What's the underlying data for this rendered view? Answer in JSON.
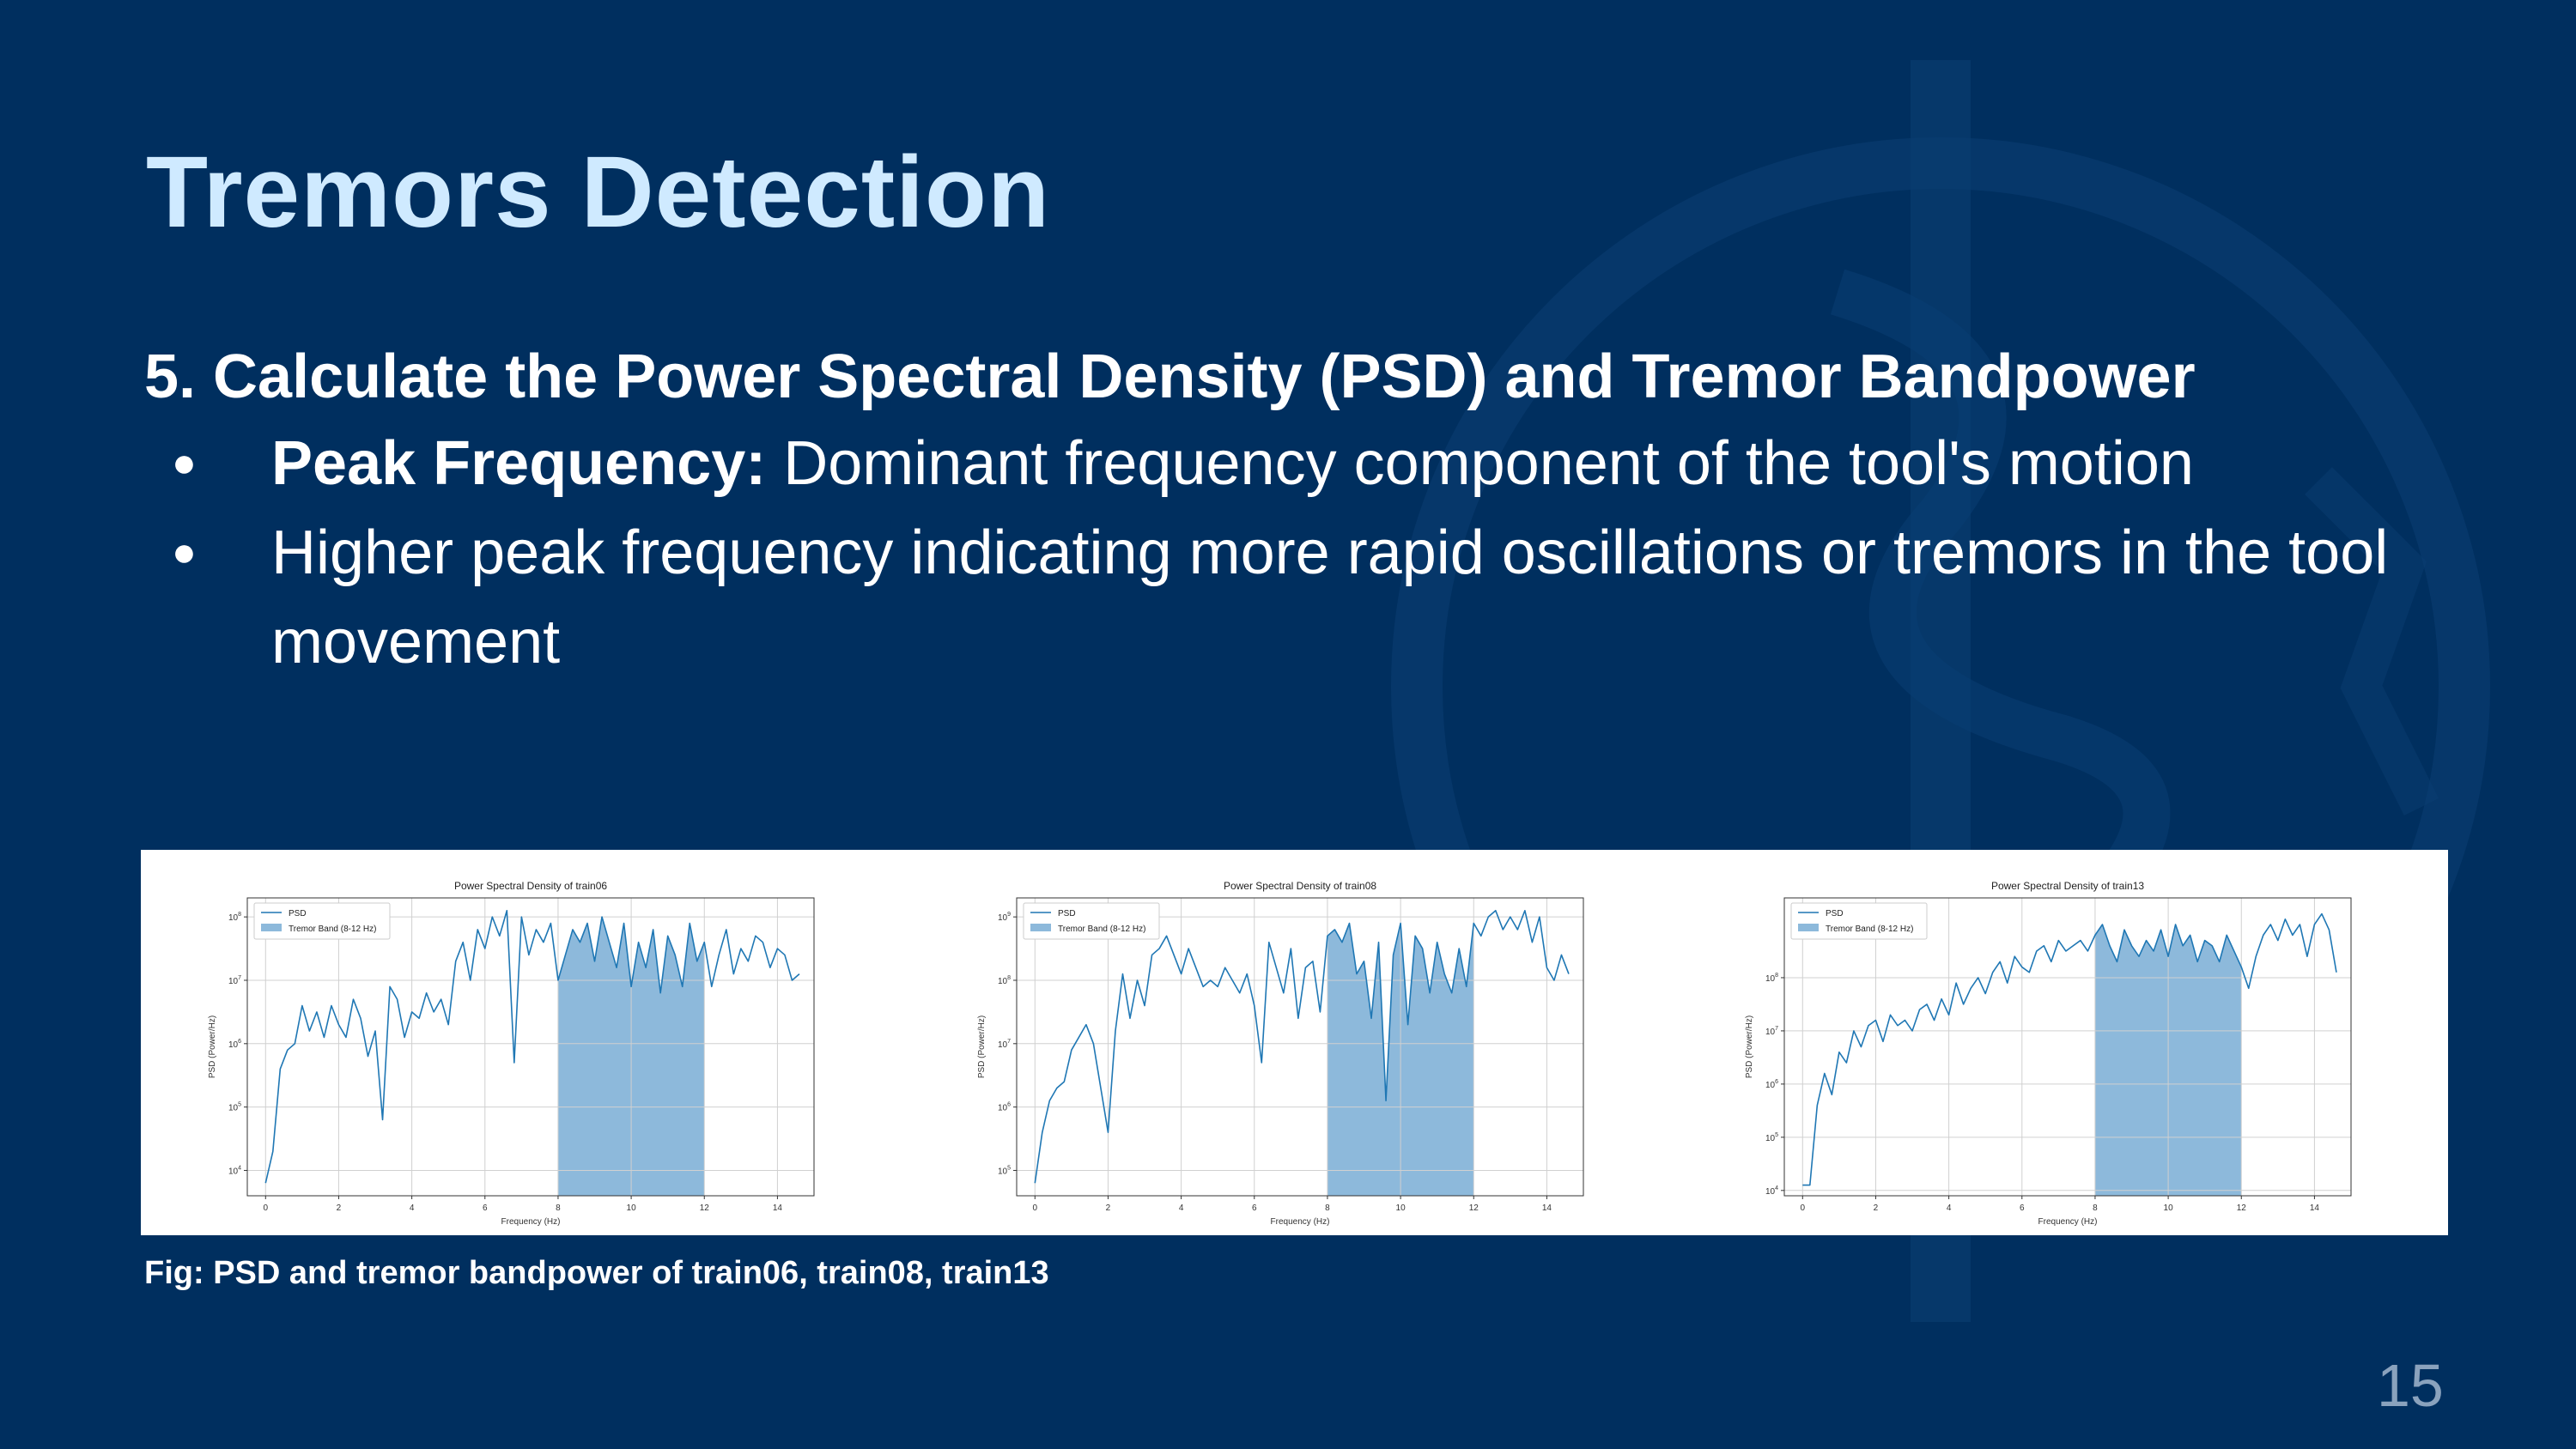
{
  "slide": {
    "title": "Tremors Detection",
    "heading": "5. Calculate the Power Spectral Density (PSD) and Tremor Bandpower",
    "bullets": [
      {
        "bold": "Peak Frequency:",
        "text": " Dominant frequency component of the tool's motion"
      },
      {
        "bold": "",
        "text": "Higher peak frequency indicating more rapid oscillations or tremors in the tool movement"
      }
    ],
    "caption": "Fig: PSD and tremor bandpower of train06, train08, train13",
    "page_number": "15",
    "bullet_symbol": "●"
  },
  "colors": {
    "background": "#002f5f",
    "title": "#cfeaff",
    "psd_line": "#1f77b4",
    "tremor_fill": "#8db9db"
  },
  "chart_data": [
    {
      "type": "line",
      "title": "Power Spectral Density of train06",
      "xlabel": "Frequency (Hz)",
      "ylabel": "PSD (Power/Hz)",
      "xlim": [
        -0.5,
        15
      ],
      "y_scale": "log",
      "ylim_log10": [
        3.6,
        8.3
      ],
      "x_ticks": [
        0,
        2,
        4,
        6,
        8,
        10,
        12,
        14
      ],
      "y_ticks_exp": [
        4,
        5,
        6,
        7,
        8
      ],
      "grid": true,
      "legend": {
        "position": "top-left",
        "entries": [
          "PSD",
          "Tremor Band (8-12 Hz)"
        ]
      },
      "tremor_band": [
        8,
        12
      ],
      "series": [
        {
          "name": "PSD",
          "x": [
            0,
            0.2,
            0.4,
            0.6,
            0.8,
            1.0,
            1.2,
            1.4,
            1.6,
            1.8,
            2.0,
            2.2,
            2.4,
            2.6,
            2.8,
            3.0,
            3.2,
            3.4,
            3.6,
            3.8,
            4.0,
            4.2,
            4.4,
            4.6,
            4.8,
            5.0,
            5.2,
            5.4,
            5.6,
            5.8,
            6.0,
            6.2,
            6.4,
            6.6,
            6.8,
            7.0,
            7.2,
            7.4,
            7.6,
            7.8,
            8.0,
            8.2,
            8.4,
            8.6,
            8.8,
            9.0,
            9.2,
            9.4,
            9.6,
            9.8,
            10.0,
            10.2,
            10.4,
            10.6,
            10.8,
            11.0,
            11.2,
            11.4,
            11.6,
            11.8,
            12.0,
            12.2,
            12.4,
            12.6,
            12.8,
            13.0,
            13.2,
            13.4,
            13.6,
            13.8,
            14.0,
            14.2,
            14.4,
            14.6
          ],
          "log10_y": [
            3.8,
            4.3,
            5.6,
            5.9,
            6.0,
            6.6,
            6.2,
            6.5,
            6.1,
            6.6,
            6.3,
            6.1,
            6.7,
            6.4,
            5.8,
            6.2,
            4.8,
            6.9,
            6.7,
            6.1,
            6.5,
            6.4,
            6.8,
            6.5,
            6.7,
            6.3,
            7.3,
            7.6,
            7.0,
            7.8,
            7.5,
            8.0,
            7.7,
            8.1,
            5.7,
            8.0,
            7.4,
            7.8,
            7.6,
            7.9,
            7.0,
            7.4,
            7.8,
            7.6,
            7.9,
            7.3,
            8.0,
            7.6,
            7.2,
            7.9,
            6.9,
            7.6,
            7.2,
            7.8,
            6.8,
            7.7,
            7.4,
            6.9,
            7.9,
            7.3,
            7.6,
            6.9,
            7.4,
            7.8,
            7.1,
            7.5,
            7.3,
            7.7,
            7.6,
            7.2,
            7.5,
            7.4,
            7.0,
            7.1
          ]
        }
      ]
    },
    {
      "type": "line",
      "title": "Power Spectral Density of train08",
      "xlabel": "Frequency (Hz)",
      "ylabel": "PSD (Power/Hz)",
      "xlim": [
        -0.5,
        15
      ],
      "y_scale": "log",
      "ylim_log10": [
        4.6,
        9.3
      ],
      "x_ticks": [
        0,
        2,
        4,
        6,
        8,
        10,
        12,
        14
      ],
      "y_ticks_exp": [
        5,
        6,
        7,
        8,
        9
      ],
      "grid": true,
      "legend": {
        "position": "top-left",
        "entries": [
          "PSD",
          "Tremor Band (8-12 Hz)"
        ]
      },
      "tremor_band": [
        8,
        12
      ],
      "series": [
        {
          "name": "PSD",
          "x": [
            0,
            0.2,
            0.4,
            0.6,
            0.8,
            1.0,
            1.2,
            1.4,
            1.6,
            1.8,
            2.0,
            2.2,
            2.4,
            2.6,
            2.8,
            3.0,
            3.2,
            3.4,
            3.6,
            3.8,
            4.0,
            4.2,
            4.4,
            4.6,
            4.8,
            5.0,
            5.2,
            5.4,
            5.6,
            5.8,
            6.0,
            6.2,
            6.4,
            6.6,
            6.8,
            7.0,
            7.2,
            7.4,
            7.6,
            7.8,
            8.0,
            8.2,
            8.4,
            8.6,
            8.8,
            9.0,
            9.2,
            9.4,
            9.6,
            9.8,
            10.0,
            10.2,
            10.4,
            10.6,
            10.8,
            11.0,
            11.2,
            11.4,
            11.6,
            11.8,
            12.0,
            12.2,
            12.4,
            12.6,
            12.8,
            13.0,
            13.2,
            13.4,
            13.6,
            13.8,
            14.0,
            14.2,
            14.4,
            14.6
          ],
          "log10_y": [
            4.8,
            5.6,
            6.1,
            6.3,
            6.4,
            6.9,
            7.1,
            7.3,
            7.0,
            6.3,
            5.6,
            7.2,
            8.1,
            7.4,
            8.0,
            7.6,
            8.4,
            8.5,
            8.7,
            8.4,
            8.1,
            8.5,
            8.2,
            7.9,
            8.0,
            7.9,
            8.2,
            8.0,
            7.8,
            8.1,
            7.6,
            6.7,
            8.6,
            8.2,
            7.8,
            8.5,
            7.4,
            8.2,
            8.3,
            7.5,
            8.7,
            8.8,
            8.6,
            8.9,
            8.1,
            8.3,
            7.4,
            8.6,
            6.1,
            8.4,
            8.9,
            7.3,
            8.7,
            8.5,
            7.8,
            8.6,
            8.1,
            7.8,
            8.5,
            7.9,
            8.9,
            8.7,
            9.0,
            9.1,
            8.8,
            9.0,
            8.8,
            9.1,
            8.6,
            9.0,
            8.2,
            8.0,
            8.4,
            8.1
          ]
        }
      ]
    },
    {
      "type": "line",
      "title": "Power Spectral Density of train13",
      "xlabel": "Frequency (Hz)",
      "ylabel": "PSD (Power/Hz)",
      "xlim": [
        -0.5,
        15
      ],
      "y_scale": "log",
      "ylim_log10": [
        3.9,
        9.5
      ],
      "x_ticks": [
        0,
        2,
        4,
        6,
        8,
        10,
        12,
        14
      ],
      "y_ticks_exp": [
        4,
        5,
        6,
        7,
        8
      ],
      "grid": true,
      "legend": {
        "position": "top-left",
        "entries": [
          "PSD",
          "Tremor Band (8-12 Hz)"
        ]
      },
      "tremor_band": [
        8,
        12
      ],
      "series": [
        {
          "name": "PSD",
          "x": [
            0,
            0.2,
            0.4,
            0.6,
            0.8,
            1.0,
            1.2,
            1.4,
            1.6,
            1.8,
            2.0,
            2.2,
            2.4,
            2.6,
            2.8,
            3.0,
            3.2,
            3.4,
            3.6,
            3.8,
            4.0,
            4.2,
            4.4,
            4.6,
            4.8,
            5.0,
            5.2,
            5.4,
            5.6,
            5.8,
            6.0,
            6.2,
            6.4,
            6.6,
            6.8,
            7.0,
            7.2,
            7.4,
            7.6,
            7.8,
            8.0,
            8.2,
            8.4,
            8.6,
            8.8,
            9.0,
            9.2,
            9.4,
            9.6,
            9.8,
            10.0,
            10.2,
            10.4,
            10.6,
            10.8,
            11.0,
            11.2,
            11.4,
            11.6,
            11.8,
            12.0,
            12.2,
            12.4,
            12.6,
            12.8,
            13.0,
            13.2,
            13.4,
            13.6,
            13.8,
            14.0,
            14.2,
            14.4,
            14.6
          ],
          "log10_y": [
            4.1,
            4.1,
            5.6,
            6.2,
            5.8,
            6.6,
            6.4,
            7.0,
            6.7,
            7.1,
            7.2,
            6.8,
            7.3,
            7.1,
            7.2,
            7.0,
            7.4,
            7.5,
            7.2,
            7.6,
            7.3,
            7.9,
            7.5,
            7.8,
            8.0,
            7.7,
            8.1,
            8.3,
            7.9,
            8.4,
            8.2,
            8.1,
            8.5,
            8.6,
            8.3,
            8.7,
            8.5,
            8.6,
            8.7,
            8.5,
            8.8,
            9.0,
            8.6,
            8.3,
            8.9,
            8.6,
            8.4,
            8.7,
            8.5,
            8.9,
            8.4,
            9.0,
            8.6,
            8.8,
            8.3,
            8.7,
            8.6,
            8.3,
            8.8,
            8.5,
            8.2,
            7.8,
            8.4,
            8.8,
            9.0,
            8.7,
            9.1,
            8.8,
            9.0,
            8.4,
            9.0,
            9.2,
            8.9,
            8.1
          ]
        }
      ]
    }
  ]
}
